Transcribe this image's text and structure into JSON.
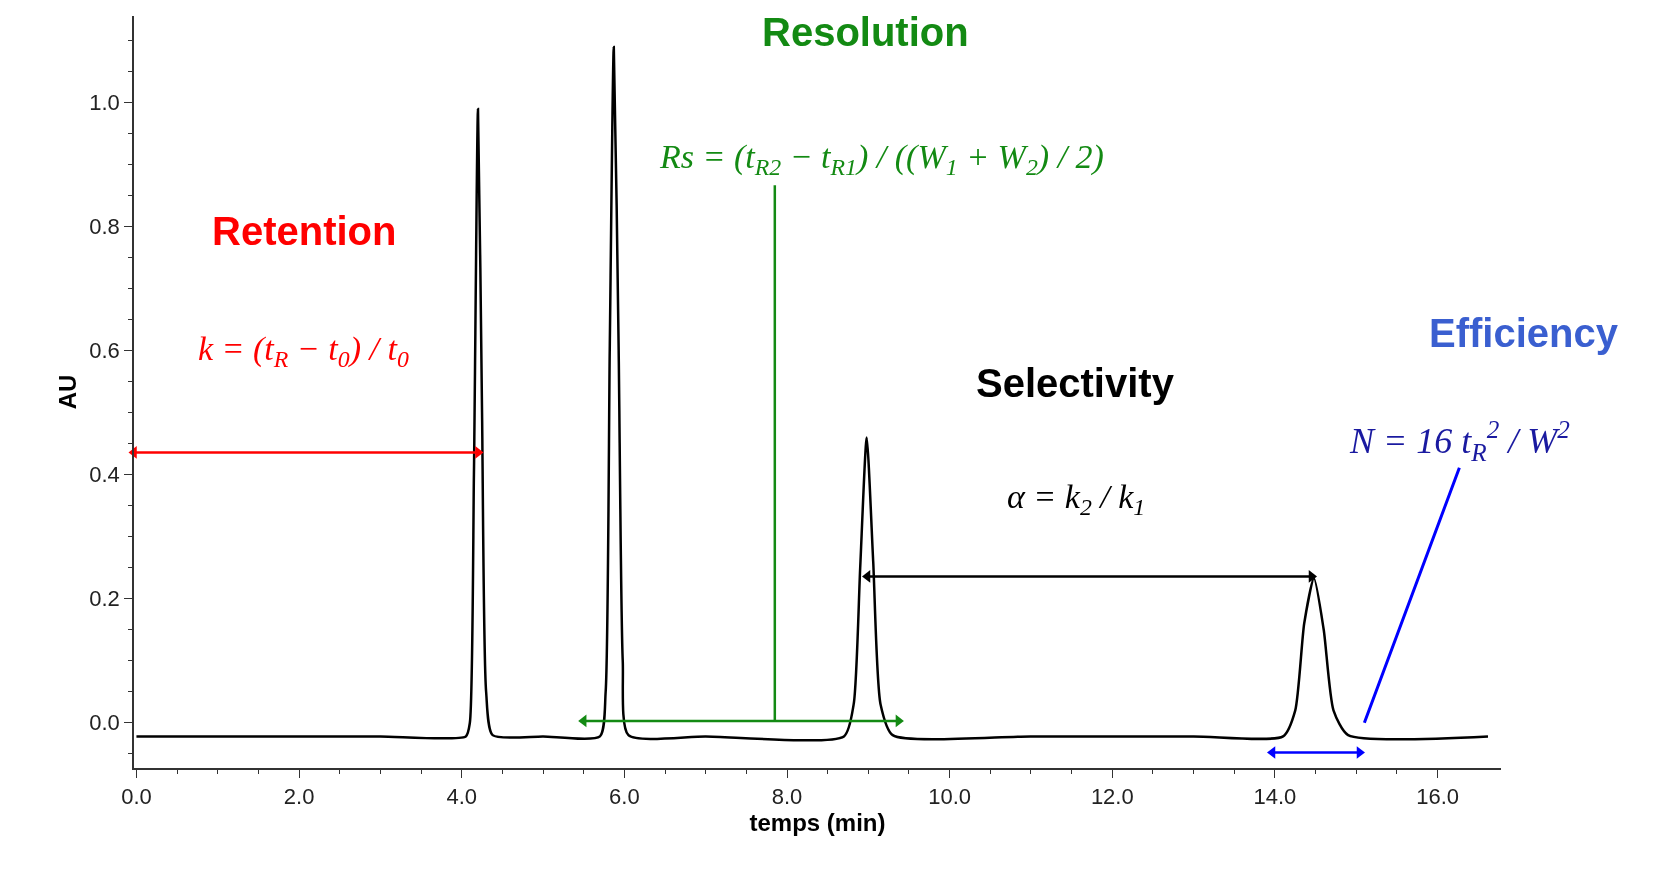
{
  "chart_data": {
    "type": "line",
    "xlabel": "temps (min)",
    "ylabel": "AU",
    "xlim": [
      -0.03,
      16.78
    ],
    "ylim": [
      -0.073,
      1.14
    ],
    "xticks": [
      {
        "value": 0,
        "label": "0.0"
      },
      {
        "value": 2,
        "label": "2.0"
      },
      {
        "value": 4,
        "label": "4.0"
      },
      {
        "value": 6,
        "label": "6.0"
      },
      {
        "value": 8,
        "label": "8.0"
      },
      {
        "value": 10,
        "label": "10.0"
      },
      {
        "value": 12,
        "label": "12.0"
      },
      {
        "value": 14,
        "label": "14.0"
      },
      {
        "value": 16,
        "label": "16.0"
      },
      {
        "value": 1,
        "label": null
      },
      {
        "value": 3,
        "label": null
      },
      {
        "value": 5,
        "label": null
      },
      {
        "value": 7,
        "label": null
      },
      {
        "value": 9,
        "label": null
      },
      {
        "value": 11,
        "label": null
      },
      {
        "value": 13,
        "label": null
      },
      {
        "value": 15,
        "label": null
      },
      {
        "value": 0.5,
        "label": null
      },
      {
        "value": 1.5,
        "label": null
      },
      {
        "value": 2.5,
        "label": null
      },
      {
        "value": 3.5,
        "label": null
      },
      {
        "value": 4.5,
        "label": null
      },
      {
        "value": 5.5,
        "label": null
      },
      {
        "value": 6.5,
        "label": null
      },
      {
        "value": 7.5,
        "label": null
      },
      {
        "value": 8.5,
        "label": null
      },
      {
        "value": 9.5,
        "label": null
      },
      {
        "value": 10.5,
        "label": null
      },
      {
        "value": 11.5,
        "label": null
      },
      {
        "value": 12.5,
        "label": null
      },
      {
        "value": 13.5,
        "label": null
      },
      {
        "value": 14.5,
        "label": null
      },
      {
        "value": 15.5,
        "label": null
      }
    ],
    "yticks": [
      {
        "value": 0,
        "label": "0.0"
      },
      {
        "value": 0.2,
        "label": "0.2"
      },
      {
        "value": 0.4,
        "label": "0.4"
      },
      {
        "value": 0.6,
        "label": "0.6"
      },
      {
        "value": 0.8,
        "label": "0.8"
      },
      {
        "value": 1.0,
        "label": "1.0"
      },
      {
        "value": -0.05,
        "label": null
      },
      {
        "value": 0.05,
        "label": null
      },
      {
        "value": 0.1,
        "label": null
      },
      {
        "value": 0.15,
        "label": null
      },
      {
        "value": 0.25,
        "label": null
      },
      {
        "value": 0.3,
        "label": null
      },
      {
        "value": 0.35,
        "label": null
      },
      {
        "value": 0.45,
        "label": null
      },
      {
        "value": 0.5,
        "label": null
      },
      {
        "value": 0.55,
        "label": null
      },
      {
        "value": 0.65,
        "label": null
      },
      {
        "value": 0.7,
        "label": null
      },
      {
        "value": 0.75,
        "label": null
      },
      {
        "value": 0.85,
        "label": null
      },
      {
        "value": 0.9,
        "label": null
      },
      {
        "value": 0.95,
        "label": null
      },
      {
        "value": 1.05,
        "label": null
      },
      {
        "value": 1.1,
        "label": null
      }
    ],
    "series": [
      {
        "color": "#000000",
        "x": [
          0,
          1,
          2,
          3,
          4.05,
          4.1,
          4.15,
          4.2,
          4.25,
          4.3,
          4.38,
          5,
          5.7,
          5.77,
          5.82,
          5.87,
          5.93,
          5.98,
          6.05,
          7,
          8.7,
          8.82,
          8.9,
          8.98,
          9.06,
          9.15,
          9.3,
          11,
          13,
          14.1,
          14.25,
          14.36,
          14.48,
          14.6,
          14.72,
          14.9,
          16.62
        ],
        "values": [
          -0.022,
          -0.022,
          -0.022,
          -0.022,
          -0.022,
          0.0,
          0.4,
          0.99,
          0.5,
          0.05,
          -0.02,
          -0.022,
          -0.022,
          0.05,
          0.6,
          1.09,
          0.6,
          0.1,
          -0.02,
          -0.022,
          -0.022,
          0.03,
          0.25,
          0.46,
          0.26,
          0.03,
          -0.02,
          -0.022,
          -0.022,
          -0.022,
          0.02,
          0.16,
          0.233,
          0.15,
          0.02,
          -0.02,
          -0.022
        ]
      },
      {
        "color": "#ff0000",
        "x": [
          -0.03,
          4.2
        ],
        "values": [
          0.436,
          0.436
        ],
        "marker": "triangle"
      },
      {
        "color": "#138a13",
        "x": [
          5.5,
          9.37
        ],
        "values": [
          0.003,
          0.003
        ],
        "marker": "triangle"
      },
      {
        "color": "#138a13",
        "x": [
          7.85,
          7.85
        ],
        "values": [
          0.003,
          0.867
        ]
      },
      {
        "color": "#000000",
        "x": [
          8.99,
          14.45
        ],
        "values": [
          0.236,
          0.236
        ],
        "marker": "triangle"
      },
      {
        "color": "#0000ff",
        "x": [
          13.97,
          15.04
        ],
        "values": [
          -0.048,
          -0.048
        ],
        "marker": "triangle"
      }
    ],
    "annotations": [
      "Retention",
      "k = (t$_{R}$ − t$_{0}$) / t$_{0}$",
      "Resolution",
      "Rs = (t$_{R2}$ − t$_{R1}$) / ((W$_{1}$ + W$_{2}$) / 2)",
      "Selectivity",
      "α = k$_{2}$ / k$_{1}$",
      "Efficiency",
      "N = 16 t$_{R}$$^{2}$ / W$^{2}$"
    ]
  }
}
